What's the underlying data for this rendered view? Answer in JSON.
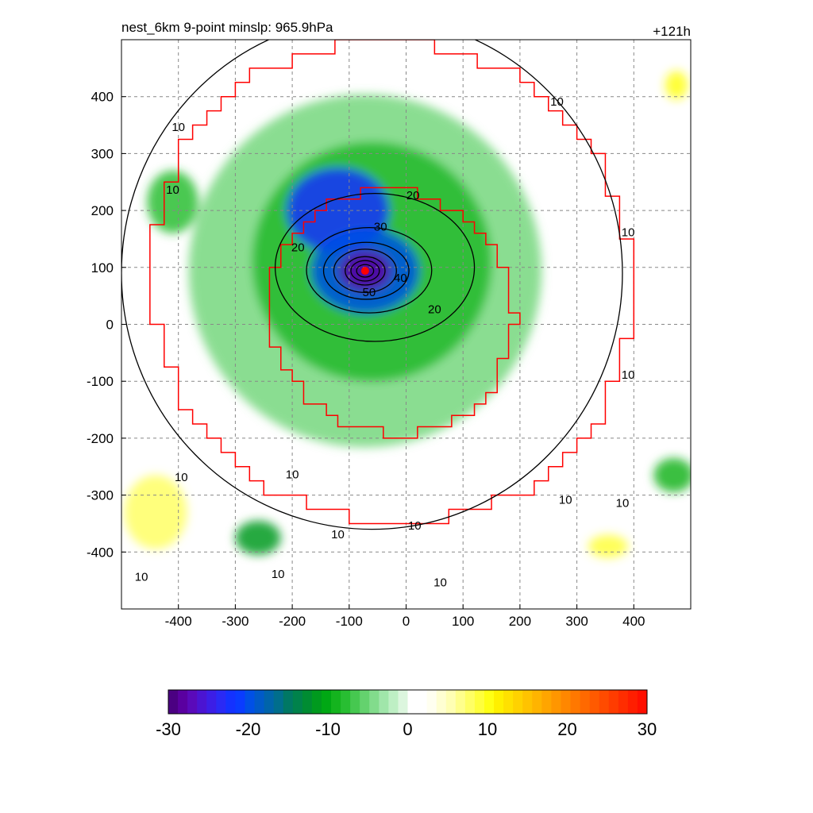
{
  "title_left": "nest_6km  9-point minslp: 965.9hPa",
  "title_right": "+121h",
  "chart_data": {
    "type": "heatmap",
    "title": "nest_6km  9-point minslp: 965.9hPa",
    "forecast_hour_label": "+121h",
    "xlabel": "",
    "ylabel": "",
    "xlim": [
      -500,
      500
    ],
    "ylim": [
      -500,
      500
    ],
    "x_ticks": [
      -400,
      -300,
      -200,
      -100,
      0,
      100,
      200,
      300,
      400
    ],
    "y_ticks": [
      -400,
      -300,
      -200,
      -100,
      0,
      100,
      200,
      300,
      400
    ],
    "grid": true,
    "min_pressure_location": [
      -72,
      94
    ],
    "min_pressure_marker_color": "#ff0000",
    "contour_line_color": "#000000",
    "contour_labels": [
      {
        "text": "10",
        "x": -400,
        "y": 345
      },
      {
        "text": "10",
        "x": -410,
        "y": 235
      },
      {
        "text": "10",
        "x": 265,
        "y": 390
      },
      {
        "text": "10",
        "x": 390,
        "y": 160
      },
      {
        "text": "10",
        "x": 390,
        "y": -90
      },
      {
        "text": "10",
        "x": -395,
        "y": -270
      },
      {
        "text": "10",
        "x": -200,
        "y": -265
      },
      {
        "text": "10",
        "x": -120,
        "y": -370
      },
      {
        "text": "10",
        "x": 15,
        "y": -355
      },
      {
        "text": "10",
        "x": 280,
        "y": -310
      },
      {
        "text": "10",
        "x": 380,
        "y": -315
      },
      {
        "text": "10",
        "x": -465,
        "y": -445
      },
      {
        "text": "10",
        "x": -225,
        "y": -440
      },
      {
        "text": "10",
        "x": 60,
        "y": -455
      },
      {
        "text": "20",
        "x": 12,
        "y": 225
      },
      {
        "text": "20",
        "x": -190,
        "y": 134
      },
      {
        "text": "20",
        "x": 50,
        "y": 25
      },
      {
        "text": "30",
        "x": -45,
        "y": 170
      },
      {
        "text": "40",
        "x": -10,
        "y": 80
      },
      {
        "text": "50",
        "x": -65,
        "y": 55
      }
    ],
    "nest_boundary_color": "#ff0000",
    "colorbar": {
      "min": -30,
      "max": 30,
      "tick_values": [
        -30,
        -20,
        -10,
        0,
        10,
        20,
        30
      ],
      "tick_labels": [
        "-30",
        "-20",
        "-10",
        "0",
        "10",
        "20",
        "30"
      ],
      "colors": [
        "#4b0082",
        "#5a00a0",
        "#5a0aba",
        "#4b14d2",
        "#3c1ee6",
        "#2a2af5",
        "#1432ff",
        "#0a3cff",
        "#0050e6",
        "#005ac8",
        "#0064aa",
        "#006e8c",
        "#007864",
        "#00824b",
        "#008c32",
        "#009a1e",
        "#00a814",
        "#14b41e",
        "#28be32",
        "#46c850",
        "#64d26e",
        "#82dc8c",
        "#a0e6aa",
        "#beefc4",
        "#dcf6de",
        "#ffffff",
        "#ffffff",
        "#fffff0",
        "#ffffd2",
        "#ffffb4",
        "#ffff8c",
        "#ffff64",
        "#ffff3c",
        "#ffff14",
        "#fff000",
        "#ffe100",
        "#ffd200",
        "#ffc300",
        "#ffb400",
        "#ffa500",
        "#ff9600",
        "#ff8700",
        "#ff7800",
        "#ff6900",
        "#ff5a00",
        "#ff4b00",
        "#ff3c00",
        "#ff2d00",
        "#ff1e00",
        "#ff0f00"
      ]
    },
    "field_features": [
      {
        "kind": "ring",
        "cx": -72,
        "cy": 94,
        "r": 310,
        "value": -5
      },
      {
        "kind": "ring",
        "cx": -60,
        "cy": 110,
        "r": 210,
        "value": -9
      },
      {
        "kind": "blob",
        "cx": -120,
        "cy": 200,
        "rx": 90,
        "ry": 75,
        "value": -22
      },
      {
        "kind": "blob",
        "cx": -72,
        "cy": 94,
        "rx": 95,
        "ry": 75,
        "value": -20
      },
      {
        "kind": "blob",
        "cx": -72,
        "cy": 94,
        "rx": 45,
        "ry": 35,
        "value": -28
      },
      {
        "kind": "blob",
        "cx": -440,
        "cy": -330,
        "rx": 55,
        "ry": 65,
        "value": 8
      },
      {
        "kind": "blob",
        "cx": 355,
        "cy": -390,
        "rx": 35,
        "ry": 20,
        "value": 9
      },
      {
        "kind": "blob",
        "cx": 475,
        "cy": 420,
        "rx": 20,
        "ry": 25,
        "value": 10
      },
      {
        "kind": "blob",
        "cx": -260,
        "cy": -375,
        "rx": 40,
        "ry": 30,
        "value": -12
      },
      {
        "kind": "blob",
        "cx": -410,
        "cy": 215,
        "rx": 45,
        "ry": 55,
        "value": -8
      },
      {
        "kind": "blob",
        "cx": 470,
        "cy": -265,
        "rx": 35,
        "ry": 30,
        "value": -9
      }
    ],
    "contour_rings": [
      {
        "value": 10,
        "cx": -60,
        "cy": 90,
        "rx": 440,
        "ry": 450
      },
      {
        "value": 20,
        "cx": -55,
        "cy": 100,
        "rx": 175,
        "ry": 130
      },
      {
        "value": 30,
        "cx": -65,
        "cy": 95,
        "rx": 110,
        "ry": 75
      },
      {
        "value": 40,
        "cx": -70,
        "cy": 94,
        "rx": 75,
        "ry": 50
      },
      {
        "value": 50,
        "cx": -72,
        "cy": 94,
        "rx": 55,
        "ry": 38
      },
      {
        "value": 60,
        "cx": -72,
        "cy": 94,
        "rx": 35,
        "ry": 25
      },
      {
        "value": 70,
        "cx": -72,
        "cy": 94,
        "rx": 25,
        "ry": 18
      },
      {
        "value": 80,
        "cx": -72,
        "cy": 94,
        "rx": 15,
        "ry": 11
      }
    ]
  }
}
